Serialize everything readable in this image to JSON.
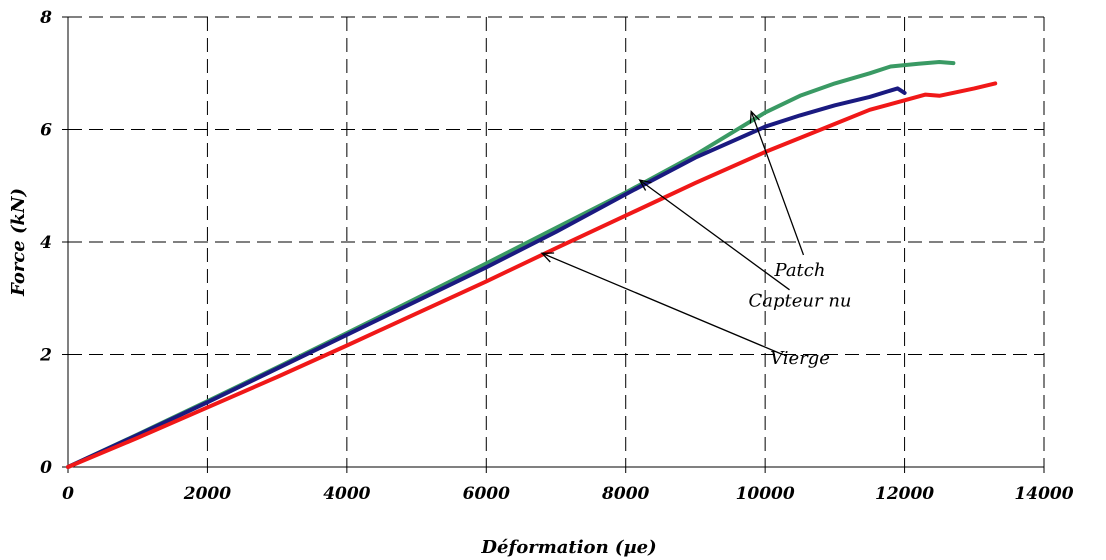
{
  "chart_data": {
    "type": "line",
    "title": "",
    "xlabel": "Déformation (µe)",
    "ylabel": "Force (kN)",
    "xlim": [
      0,
      14000
    ],
    "ylim": [
      0,
      8
    ],
    "x_ticks": [
      0,
      2000,
      4000,
      6000,
      8000,
      10000,
      12000,
      14000
    ],
    "y_ticks": [
      0,
      2,
      4,
      6,
      8
    ],
    "x_tick_labels": [
      "0",
      "2000",
      "4000",
      "6000",
      "8000",
      "10000",
      "12000",
      "14000"
    ],
    "y_tick_labels": [
      "0",
      "2",
      "4",
      "6",
      "8"
    ],
    "grid": true,
    "legend": "none",
    "series": [
      {
        "name": "Patch",
        "color": "#3A9A64",
        "x": [
          0,
          1000,
          2000,
          3000,
          4000,
          5000,
          6000,
          7000,
          8000,
          9000,
          10000,
          10500,
          11000,
          11500,
          11800,
          12200,
          12500,
          12700
        ],
        "y": [
          0,
          0.58,
          1.17,
          1.77,
          2.38,
          3.0,
          3.62,
          4.25,
          4.88,
          5.55,
          6.3,
          6.6,
          6.82,
          7.0,
          7.12,
          7.17,
          7.2,
          7.18
        ]
      },
      {
        "name": "Capteur nu",
        "color": "#1A1A80",
        "x": [
          0,
          1000,
          2000,
          3000,
          4000,
          5000,
          6000,
          7000,
          8000,
          9000,
          10000,
          10500,
          11000,
          11500,
          11900,
          12000
        ],
        "y": [
          0,
          0.57,
          1.15,
          1.75,
          2.35,
          2.95,
          3.55,
          4.18,
          4.85,
          5.5,
          6.05,
          6.25,
          6.43,
          6.58,
          6.73,
          6.65
        ]
      },
      {
        "name": "Vierge",
        "color": "#F01818",
        "x": [
          0,
          1000,
          2000,
          3000,
          4000,
          5000,
          6000,
          7000,
          8000,
          9000,
          10000,
          11000,
          11500,
          12000,
          12300,
          12500,
          13000,
          13300
        ],
        "y": [
          0,
          0.52,
          1.06,
          1.6,
          2.16,
          2.73,
          3.3,
          3.89,
          4.47,
          5.05,
          5.6,
          6.1,
          6.35,
          6.52,
          6.62,
          6.6,
          6.73,
          6.82
        ]
      }
    ],
    "annotations": [
      {
        "text": "Patch",
        "text_at": [
          10500,
          3.4
        ],
        "arrow_from": [
          10550,
          3.77
        ],
        "arrow_to": [
          9800,
          6.32
        ]
      },
      {
        "text": "Capteur nu",
        "text_at": [
          10500,
          2.85
        ],
        "arrow_from": [
          10350,
          3.15
        ],
        "arrow_to": [
          8200,
          5.1
        ]
      },
      {
        "text": "Vierge",
        "text_at": [
          10500,
          1.83
        ],
        "arrow_from": [
          10250,
          2.0
        ],
        "arrow_to": [
          6800,
          3.8
        ]
      }
    ]
  }
}
